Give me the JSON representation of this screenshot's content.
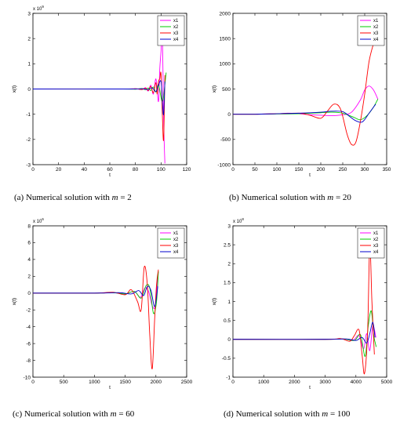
{
  "chart_data": [
    {
      "type": "line",
      "caption": "(a) Numerical solution with m = 2",
      "caption_prefix": "(a) Numerical solution with ",
      "caption_var": "m",
      "caption_suffix": " = 2",
      "xlabel": "t",
      "ylabel": "x(t)",
      "multiplier": "x 10",
      "exponent": "9",
      "xlim": [
        0,
        120
      ],
      "ylim": [
        -3,
        3
      ],
      "xticks": [
        "0",
        "20",
        "40",
        "60",
        "80",
        "100",
        "120"
      ],
      "yticks": [
        "-3",
        "-2",
        "-1",
        "0",
        "1",
        "2",
        "3"
      ],
      "legend_position": "top-right",
      "series": [
        {
          "name": "x1",
          "color": "#ff00ff",
          "x": [
            0,
            70,
            80,
            85,
            88,
            90,
            92,
            94,
            96,
            98,
            99,
            100,
            101,
            102,
            103
          ],
          "y": [
            0,
            0,
            0.01,
            -0.02,
            0.05,
            -0.08,
            0.15,
            -0.2,
            0.4,
            -0.5,
            0.8,
            1.5,
            2.4,
            -1.2,
            -2.95
          ]
        },
        {
          "name": "x2",
          "color": "#00cc00",
          "x": [
            0,
            70,
            80,
            85,
            88,
            90,
            92,
            94,
            96,
            98,
            100,
            101,
            102,
            103,
            104
          ],
          "y": [
            0,
            0,
            -0.01,
            0.02,
            -0.03,
            0.04,
            -0.06,
            0.08,
            -0.12,
            0.18,
            -0.35,
            -0.5,
            -0.3,
            0.2,
            0.65
          ]
        },
        {
          "name": "x3",
          "color": "#ff0000",
          "x": [
            0,
            70,
            80,
            85,
            88,
            90,
            92,
            94,
            96,
            97,
            98,
            99,
            100,
            101,
            102,
            103
          ],
          "y": [
            0,
            0,
            0.01,
            -0.02,
            0.03,
            -0.06,
            0.1,
            -0.15,
            0.25,
            -0.2,
            0.3,
            0.4,
            0.6,
            -1.0,
            -2.0,
            0.55
          ]
        },
        {
          "name": "x4",
          "color": "#0000cc",
          "x": [
            0,
            75,
            85,
            90,
            93,
            96,
            98,
            100,
            101,
            102,
            103
          ],
          "y": [
            0,
            0,
            0.01,
            -0.02,
            0.05,
            -0.1,
            0.15,
            0.3,
            -0.5,
            -1.0,
            0.3
          ]
        }
      ]
    },
    {
      "type": "line",
      "caption": "(b) Numerical solution with m = 20",
      "caption_prefix": "(b) Numerical solution with ",
      "caption_var": "m",
      "caption_suffix": " = 20",
      "xlabel": "t",
      "ylabel": "x(t)",
      "multiplier": "",
      "exponent": "",
      "xlim": [
        0,
        350
      ],
      "ylim": [
        -1000,
        2000
      ],
      "xticks": [
        "0",
        "50",
        "100",
        "150",
        "200",
        "250",
        "300",
        "350"
      ],
      "yticks": [
        "-1000",
        "-500",
        "0",
        "500",
        "1000",
        "1500",
        "2000"
      ],
      "legend_position": "top-right",
      "series": [
        {
          "name": "x1",
          "color": "#ff00ff",
          "x": [
            0,
            50,
            100,
            125,
            150,
            175,
            200,
            225,
            250,
            270,
            290,
            300,
            310,
            320,
            330
          ],
          "y": [
            0,
            0,
            10,
            20,
            10,
            -10,
            -20,
            -30,
            -10,
            40,
            280,
            480,
            560,
            480,
            300
          ]
        },
        {
          "name": "x2",
          "color": "#00cc00",
          "x": [
            0,
            50,
            100,
            150,
            175,
            200,
            225,
            250,
            275,
            290,
            305,
            320,
            330
          ],
          "y": [
            0,
            0,
            5,
            10,
            20,
            30,
            40,
            20,
            -60,
            -110,
            -30,
            140,
            300
          ]
        },
        {
          "name": "x3",
          "color": "#ff0000",
          "x": [
            0,
            50,
            100,
            150,
            175,
            200,
            215,
            230,
            245,
            260,
            270,
            280,
            290,
            300,
            310,
            320
          ],
          "y": [
            0,
            0,
            10,
            20,
            -20,
            -80,
            60,
            200,
            100,
            -400,
            -600,
            -550,
            -150,
            400,
            1050,
            1400
          ]
        },
        {
          "name": "x4",
          "color": "#0000cc",
          "x": [
            0,
            50,
            100,
            150,
            200,
            225,
            250,
            265,
            280,
            295,
            310,
            325
          ],
          "y": [
            0,
            0,
            10,
            20,
            40,
            60,
            50,
            -40,
            -130,
            -150,
            20,
            200
          ]
        }
      ]
    },
    {
      "type": "line",
      "caption": "(c) Numerical solution with m = 60",
      "caption_prefix": "(c) Numerical solution with ",
      "caption_var": "m",
      "caption_suffix": " = 60",
      "xlabel": "t",
      "ylabel": "x(t)",
      "multiplier": "x 10",
      "exponent": "6",
      "xlim": [
        0,
        2500
      ],
      "ylim": [
        -10,
        8
      ],
      "xticks": [
        "0",
        "500",
        "1000",
        "1500",
        "2000",
        "2500"
      ],
      "yticks": [
        "-10",
        "-8",
        "-6",
        "-4",
        "-2",
        "0",
        "2",
        "4",
        "6",
        "8"
      ],
      "legend_position": "top-right",
      "series": [
        {
          "name": "x1",
          "color": "#ff00ff",
          "x": [
            0,
            1000,
            1300,
            1500,
            1650,
            1750,
            1820,
            1880,
            1940,
            1990,
            2030
          ],
          "y": [
            0,
            0,
            0.05,
            -0.1,
            0.2,
            -0.5,
            0.6,
            0.2,
            -1.5,
            -1.5,
            2.2
          ]
        },
        {
          "name": "x2",
          "color": "#00cc00",
          "x": [
            0,
            1000,
            1300,
            1500,
            1650,
            1760,
            1840,
            1900,
            1960,
            2010,
            2040
          ],
          "y": [
            0,
            0,
            0.05,
            -0.1,
            0.2,
            -0.6,
            0.9,
            0.6,
            -2.4,
            -1.0,
            2.6
          ]
        },
        {
          "name": "x3",
          "color": "#ff0000",
          "x": [
            0,
            1000,
            1300,
            1500,
            1600,
            1700,
            1760,
            1810,
            1860,
            1900,
            1940,
            1980,
            2010,
            2040
          ],
          "y": [
            0,
            0,
            0.1,
            -0.2,
            0.4,
            -1.0,
            -2.0,
            3.1,
            1.0,
            -5.0,
            -9.0,
            -3.0,
            1.0,
            2.8
          ]
        },
        {
          "name": "x4",
          "color": "#0000cc",
          "x": [
            0,
            1000,
            1400,
            1600,
            1720,
            1800,
            1860,
            1920,
            1980,
            2030
          ],
          "y": [
            0,
            0,
            0.05,
            -0.1,
            0.3,
            -0.3,
            0.8,
            0.3,
            -1.6,
            0.8
          ]
        }
      ]
    },
    {
      "type": "line",
      "caption": "(d) Numerical solution with m = 100",
      "caption_prefix": "(d) Numerical solution with ",
      "caption_var": "m",
      "caption_suffix": " = 100",
      "xlabel": "t",
      "ylabel": "x(t)",
      "multiplier": "x 10",
      "exponent": "8",
      "xlim": [
        0,
        5000
      ],
      "ylim": [
        -1,
        3
      ],
      "xticks": [
        "0",
        "1000",
        "2000",
        "3000",
        "4000",
        "5000"
      ],
      "yticks": [
        "-1",
        "-0.5",
        "0",
        "0.5",
        "1",
        "1.5",
        "2",
        "2.5",
        "3"
      ],
      "legend_position": "top-right",
      "series": [
        {
          "name": "x1",
          "color": "#ff00ff",
          "x": [
            0,
            3000,
            3600,
            3900,
            4100,
            4250,
            4350,
            4450,
            4550,
            4650
          ],
          "y": [
            0,
            0,
            0.01,
            -0.03,
            0.1,
            -0.25,
            0.15,
            -0.3,
            0.35,
            0.05
          ]
        },
        {
          "name": "x2",
          "color": "#00cc00",
          "x": [
            0,
            3000,
            3600,
            3950,
            4150,
            4300,
            4400,
            4500,
            4580,
            4660
          ],
          "y": [
            0,
            0,
            0.01,
            -0.03,
            0.12,
            -0.45,
            0.35,
            0.75,
            0.1,
            -0.2
          ]
        },
        {
          "name": "x3",
          "color": "#ff0000",
          "x": [
            0,
            3000,
            3500,
            3800,
            3950,
            4100,
            4200,
            4280,
            4380,
            4450,
            4520,
            4600
          ],
          "y": [
            0,
            0,
            0.02,
            -0.05,
            0.1,
            0.25,
            -0.4,
            -0.9,
            0.2,
            2.5,
            1.0,
            -0.4
          ]
        },
        {
          "name": "x4",
          "color": "#0000cc",
          "x": [
            0,
            3000,
            3700,
            4000,
            4200,
            4350,
            4450,
            4550,
            4620
          ],
          "y": [
            0,
            0,
            0.01,
            -0.03,
            0.05,
            -0.1,
            0.15,
            0.45,
            0.05
          ]
        }
      ]
    }
  ]
}
